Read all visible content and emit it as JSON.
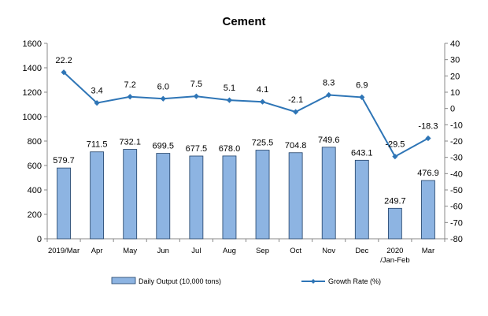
{
  "chart_data": {
    "type": "bar+line",
    "title": "Cement",
    "categories": [
      "2019/Mar",
      "Apr",
      "May",
      "Jun",
      "Jul",
      "Aug",
      "Sep",
      "Oct",
      "Nov",
      "Dec",
      "2020 /Jan-Feb",
      "Mar"
    ],
    "category_lines": [
      [
        "2019/Mar"
      ],
      [
        "Apr"
      ],
      [
        "May"
      ],
      [
        "Jun"
      ],
      [
        "Jul"
      ],
      [
        "Aug"
      ],
      [
        "Sep"
      ],
      [
        "Oct"
      ],
      [
        "Nov"
      ],
      [
        "Dec"
      ],
      [
        "2020",
        "/Jan-Feb"
      ],
      [
        "Mar"
      ]
    ],
    "series": [
      {
        "name": "Daily Output (10,000 tons)",
        "type": "bar",
        "axis": "left",
        "color": "#8db4e2",
        "values": [
          579.7,
          711.5,
          732.1,
          699.5,
          677.5,
          678.0,
          725.5,
          704.8,
          749.6,
          643.1,
          249.7,
          476.9
        ],
        "labels": [
          "579.7",
          "711.5",
          "732.1",
          "699.5",
          "677.5",
          "678.0",
          "725.5",
          "704.8",
          "749.6",
          "643.1",
          "249.7",
          "476.9"
        ]
      },
      {
        "name": "Growth Rate (%)",
        "type": "line",
        "axis": "right",
        "color": "#2e75b6",
        "values": [
          22.2,
          3.4,
          7.2,
          6.0,
          7.5,
          5.1,
          4.1,
          -2.1,
          8.3,
          6.9,
          -29.5,
          -18.3
        ],
        "labels": [
          "22.2",
          "3.4",
          "7.2",
          "6.0",
          "7.5",
          "5.1",
          "4.1",
          "-2.1",
          "8.3",
          "6.9",
          "-29.5",
          "-18.3"
        ]
      }
    ],
    "y_left": {
      "min": 0,
      "max": 1600,
      "ticks": [
        "0",
        "200",
        "400",
        "600",
        "800",
        "1000",
        "1200",
        "1400",
        "1600"
      ]
    },
    "y_right": {
      "min": -80,
      "max": 40,
      "ticks": [
        "-80",
        "-70",
        "-60",
        "-50",
        "-40",
        "-30",
        "-20",
        "-10",
        "0",
        "10",
        "20",
        "30",
        "40"
      ]
    },
    "grid": false,
    "legend_position": "bottom"
  }
}
